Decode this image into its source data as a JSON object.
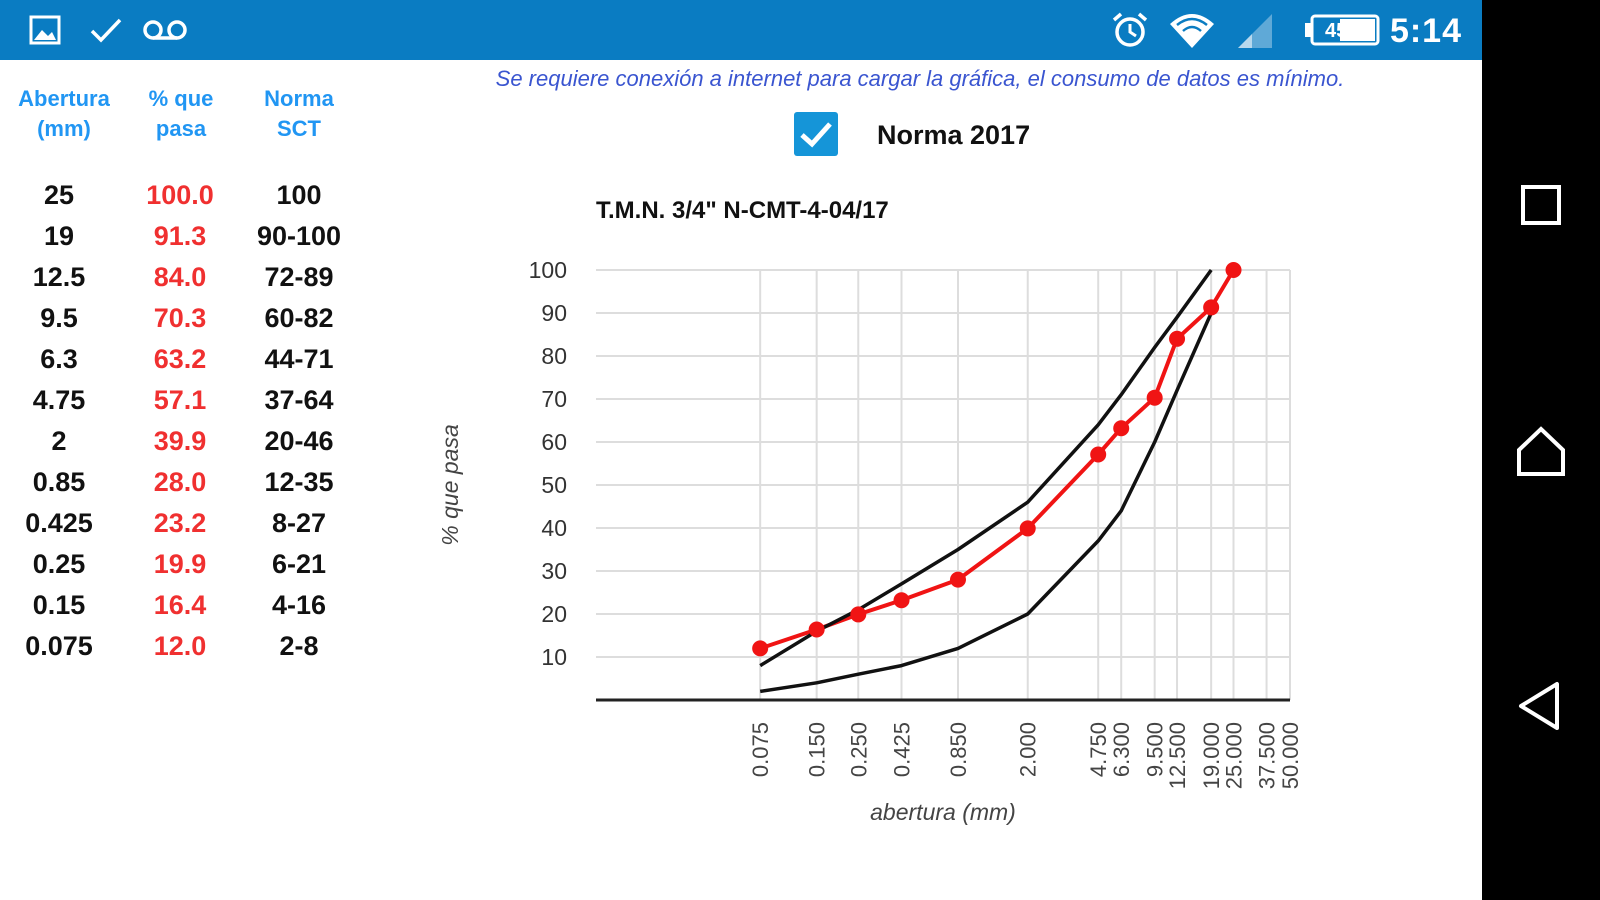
{
  "status_bar": {
    "time": "5:14",
    "battery_percent": "45%",
    "bg_color": "#0a7cc2",
    "left_icons": [
      "image-icon",
      "check-icon",
      "voicemail-icon"
    ],
    "right_icons": [
      "alarm-icon",
      "wifi-icon",
      "signal-icon",
      "battery-icon"
    ]
  },
  "nav_bar": {
    "buttons": [
      "recent-apps-icon",
      "home-icon",
      "back-icon"
    ]
  },
  "table": {
    "headers": {
      "abertura": [
        "Abertura",
        "(mm)"
      ],
      "pasa": [
        "% que",
        "pasa"
      ],
      "norma": [
        "Norma",
        "SCT"
      ]
    },
    "rows": [
      {
        "abertura": "25",
        "pasa": "100.0",
        "norma": "100"
      },
      {
        "abertura": "19",
        "pasa": "91.3",
        "norma": "90-100"
      },
      {
        "abertura": "12.5",
        "pasa": "84.0",
        "norma": "72-89"
      },
      {
        "abertura": "9.5",
        "pasa": "70.3",
        "norma": "60-82"
      },
      {
        "abertura": "6.3",
        "pasa": "63.2",
        "norma": "44-71"
      },
      {
        "abertura": "4.75",
        "pasa": "57.1",
        "norma": "37-64"
      },
      {
        "abertura": "2",
        "pasa": "39.9",
        "norma": "20-46"
      },
      {
        "abertura": "0.85",
        "pasa": "28.0",
        "norma": "12-35"
      },
      {
        "abertura": "0.425",
        "pasa": "23.2",
        "norma": "8-27"
      },
      {
        "abertura": "0.25",
        "pasa": "19.9",
        "norma": "6-21"
      },
      {
        "abertura": "0.15",
        "pasa": "16.4",
        "norma": "4-16"
      },
      {
        "abertura": "0.075",
        "pasa": "12.0",
        "norma": "2-8"
      }
    ]
  },
  "notice": "Se requiere conexión a internet para cargar la gráfica, el consumo de datos es mínimo.",
  "norma_toggle": {
    "label": "Norma 2017",
    "checked": true
  },
  "chart_data": {
    "type": "line",
    "title": "T.M.N. 3/4\" N-CMT-4-04/17",
    "xlabel": "abertura (mm)",
    "ylabel": "% que pasa",
    "x_ticks": [
      "0.075",
      "0.150",
      "0.250",
      "0.425",
      "0.850",
      "2.000",
      "4.750",
      "6.300",
      "9.500",
      "12.500",
      "19.000",
      "25.000",
      "37.500",
      "50.000"
    ],
    "y_ticks": [
      "10",
      "20",
      "30",
      "40",
      "50",
      "60",
      "70",
      "80",
      "90",
      "100"
    ],
    "ylim": [
      0,
      100
    ],
    "x_scale": "log",
    "grid": true,
    "series": [
      {
        "color": "#f01414",
        "markers": true,
        "points": [
          {
            "x": 0.075,
            "y": 12.0
          },
          {
            "x": 0.15,
            "y": 16.4
          },
          {
            "x": 0.25,
            "y": 19.9
          },
          {
            "x": 0.425,
            "y": 23.2
          },
          {
            "x": 0.85,
            "y": 28.0
          },
          {
            "x": 2,
            "y": 39.9
          },
          {
            "x": 4.75,
            "y": 57.1
          },
          {
            "x": 6.3,
            "y": 63.2
          },
          {
            "x": 9.5,
            "y": 70.3
          },
          {
            "x": 12.5,
            "y": 84.0
          },
          {
            "x": 19,
            "y": 91.3
          },
          {
            "x": 25,
            "y": 100.0
          }
        ]
      },
      {
        "color": "#111111",
        "markers": false,
        "points": [
          {
            "x": 0.075,
            "y": 8
          },
          {
            "x": 0.15,
            "y": 16
          },
          {
            "x": 0.25,
            "y": 21
          },
          {
            "x": 0.425,
            "y": 27
          },
          {
            "x": 0.85,
            "y": 35
          },
          {
            "x": 2,
            "y": 46
          },
          {
            "x": 4.75,
            "y": 64
          },
          {
            "x": 6.3,
            "y": 71
          },
          {
            "x": 9.5,
            "y": 82
          },
          {
            "x": 12.5,
            "y": 89
          },
          {
            "x": 19,
            "y": 100
          }
        ]
      },
      {
        "color": "#111111",
        "markers": false,
        "points": [
          {
            "x": 0.075,
            "y": 2
          },
          {
            "x": 0.15,
            "y": 4
          },
          {
            "x": 0.25,
            "y": 6
          },
          {
            "x": 0.425,
            "y": 8
          },
          {
            "x": 0.85,
            "y": 12
          },
          {
            "x": 2,
            "y": 20
          },
          {
            "x": 4.75,
            "y": 37
          },
          {
            "x": 6.3,
            "y": 44
          },
          {
            "x": 9.5,
            "y": 60
          },
          {
            "x": 12.5,
            "y": 72
          },
          {
            "x": 19,
            "y": 90
          }
        ]
      }
    ]
  }
}
